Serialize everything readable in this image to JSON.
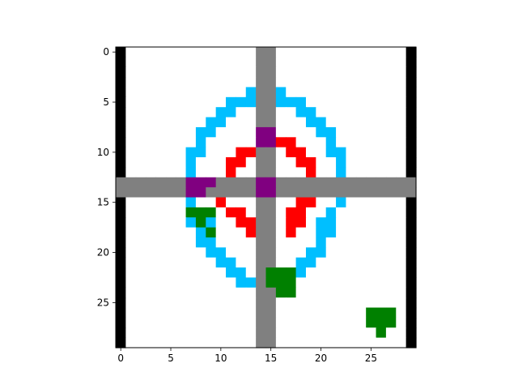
{
  "chart_data": {
    "type": "heatmap",
    "title": "",
    "xlabel": "",
    "ylabel": "",
    "xlim": [
      -0.5,
      29.5
    ],
    "ylim": [
      29.5,
      -0.5
    ],
    "y_axis_inverted": true,
    "xticks": [
      0,
      5,
      10,
      15,
      20,
      25
    ],
    "yticks": [
      0,
      5,
      10,
      15,
      20,
      25
    ],
    "grid": false,
    "legend": "none",
    "colors": {
      "background": "#ffffff",
      "border": "#000000",
      "outer_ring": "#00bfff",
      "inner_ring": "#ff0000",
      "crosshair": "#808080",
      "marker": "#800080",
      "blob": "#008000"
    },
    "rows": [
      "B.............GG.............B",
      "B.............GG.............B",
      "B.............GG.............B",
      "B.............GG.............B",
      "B............CGGC............B",
      "B..........CCCGGCCC..........B",
      "B.........CC..GG..CC.........B",
      "B........CC...GG...CC........B",
      "B.......CC....PP....CC.......B",
      "B.......C.....PPRR...C.......B",
      "B......CC...RRGG.RR..CC......B",
      "B......C...RR.GG..RR..C......B",
      "B......C...R..GG...R..C......B",
      "GGGGGGGPPPGGGGPPGGGGGGGGGGGGGG",
      "GGGGGGGPPGGGGGPPGGGGGGGGGGGGGG",
      "B......C..R...GG..RR..C......B",
      "B......TTT.RR.GG.RR..C.......B",
      "B......CTC..RRGG.RR.CC.......B",
      "B.......CT...RGG.R..CC.......B",
      "B.......CC....GG....C........B",
      "B........CC...GG...CC........B",
      "B.........CC..GG..CC.........B",
      "B..........CC.GTTTC..........B",
      "B...........CCGTTT...........B",
      "B.............GGTT...........B",
      "B.............GG.............B",
      "B.............GG.........TTT.B",
      "B.............GG.........TTT.B",
      "B.............GG..........T..B",
      "B.............GG.............B"
    ],
    "legend_codes": {
      "B": "border",
      "C": "outer_ring",
      "R": "inner_ring",
      "G": "crosshair",
      "P": "marker",
      "T": "blob",
      ".": "background"
    }
  }
}
